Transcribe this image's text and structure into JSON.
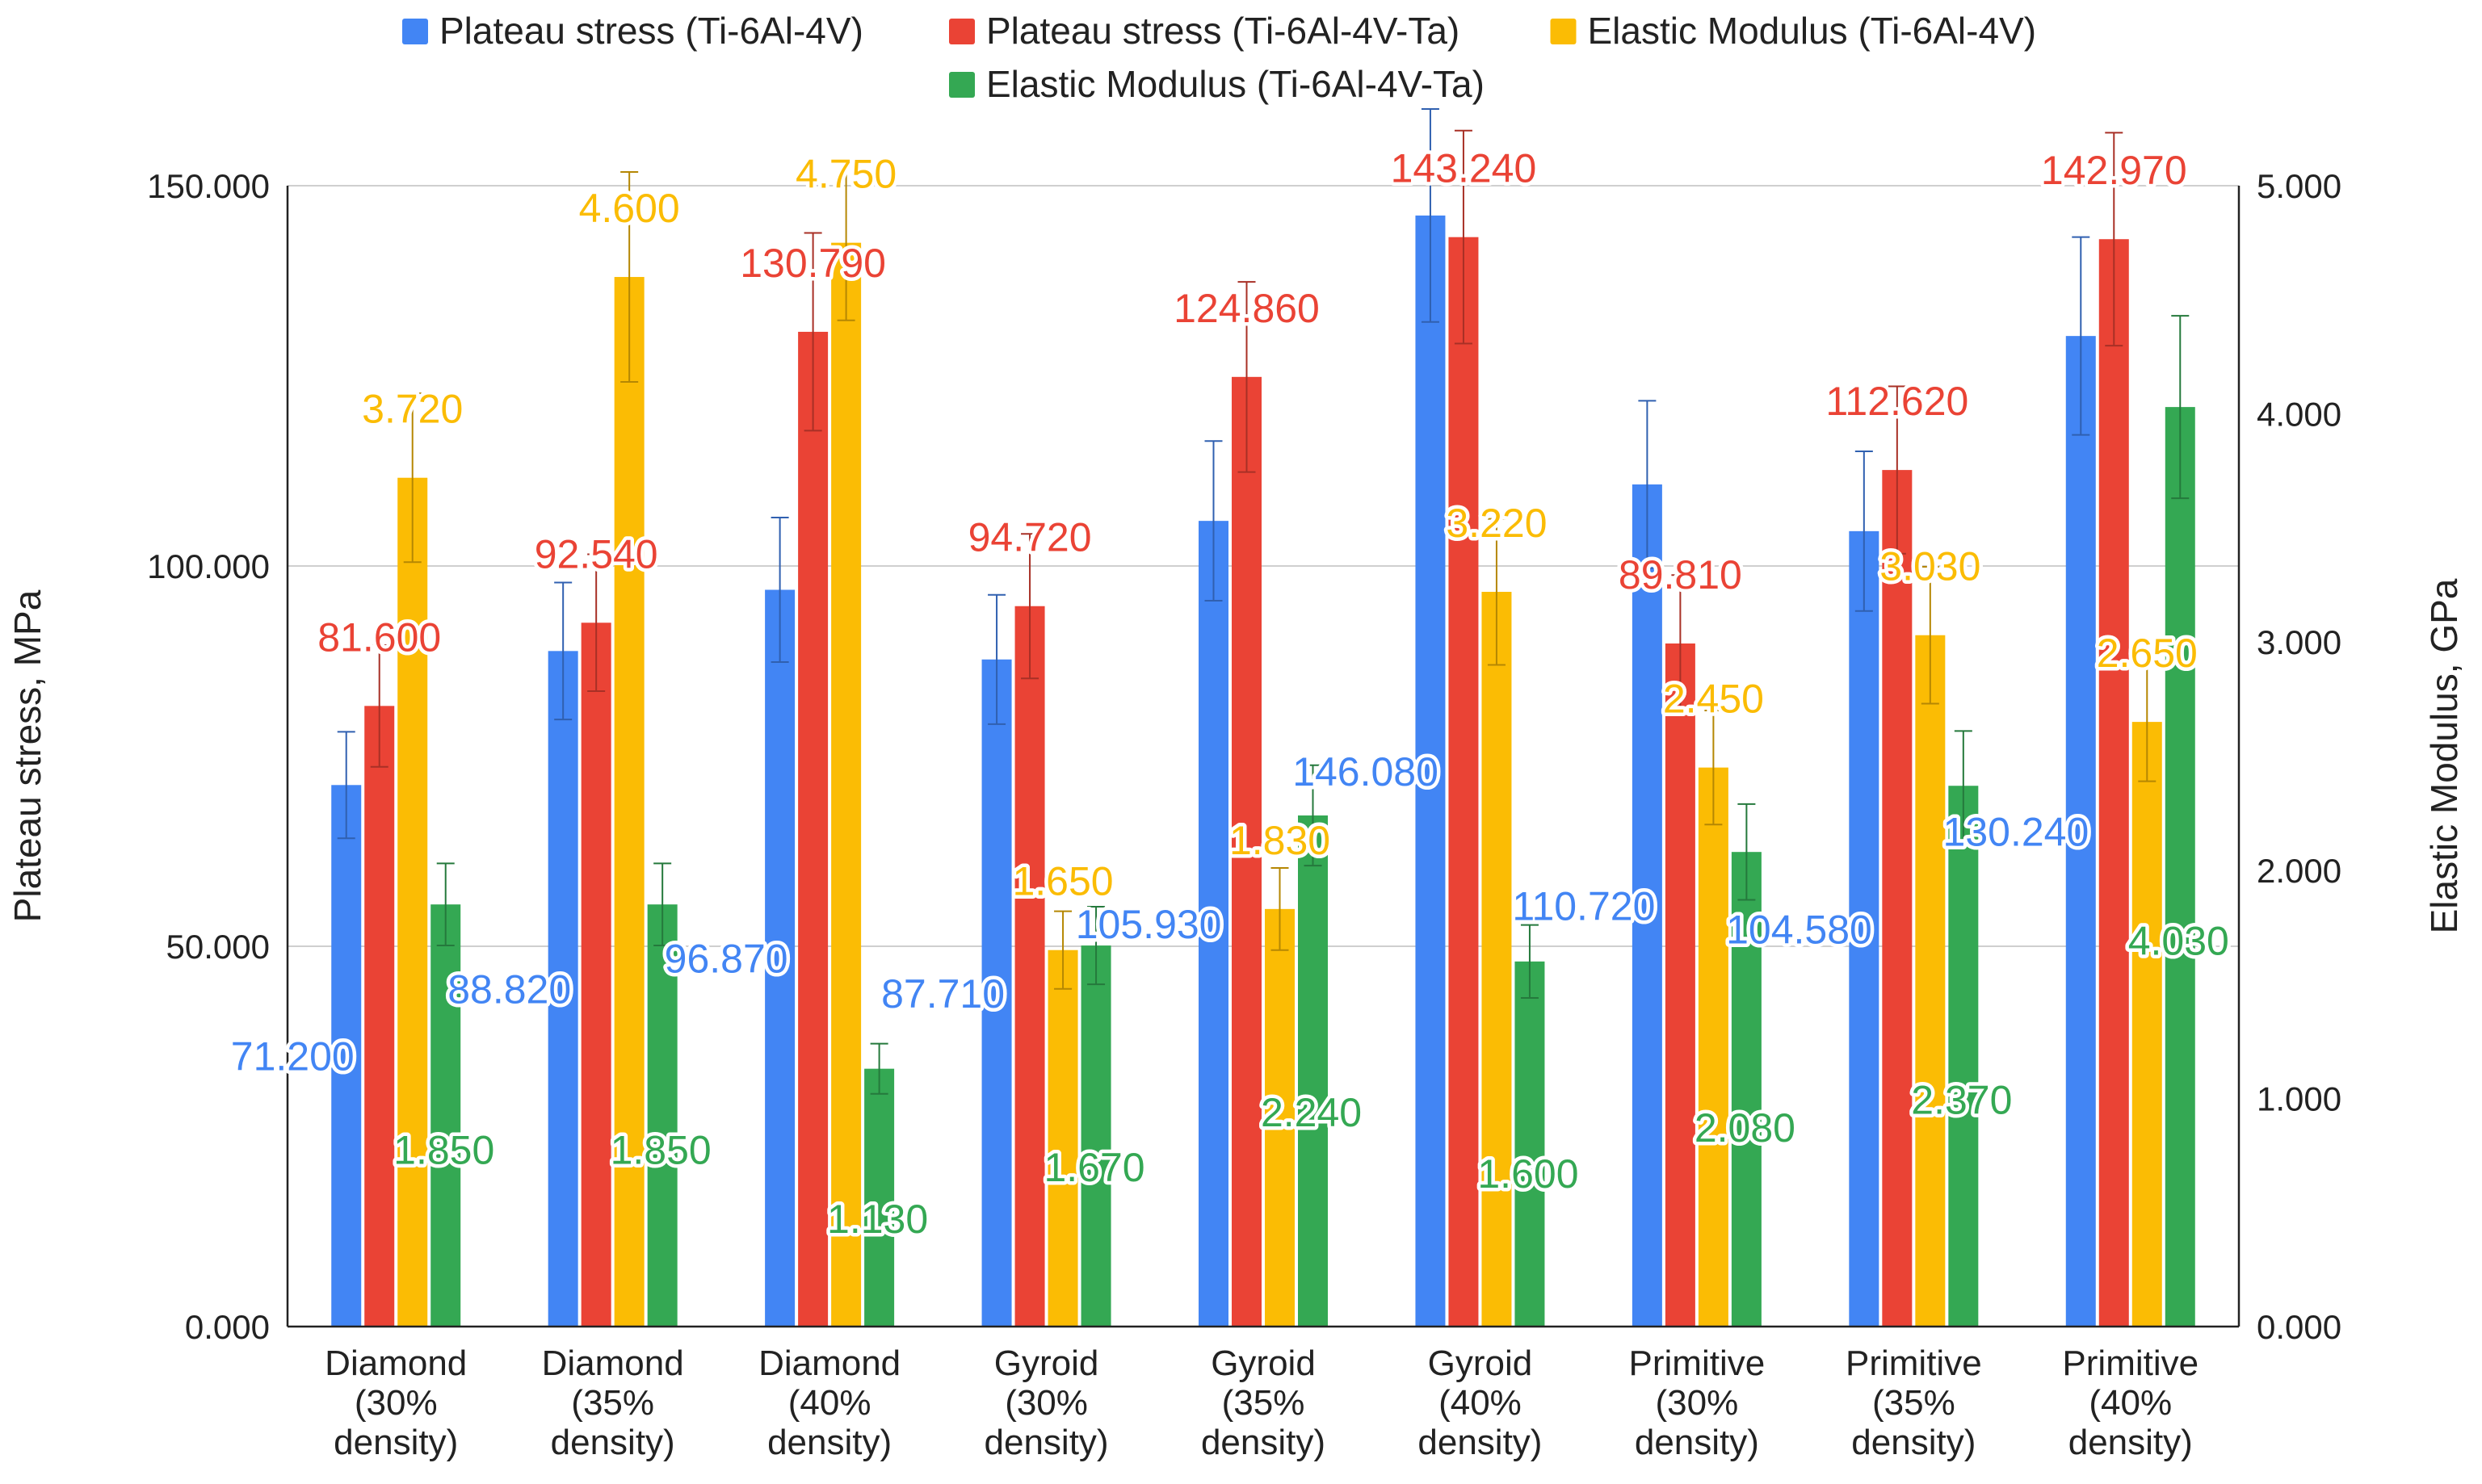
{
  "chart_data": {
    "type": "bar",
    "title": "",
    "xlabel": "",
    "ylabel": "Plateau stress, MPa",
    "y2label": "Elastic Modulus,  GPa",
    "ylim": [
      0,
      150
    ],
    "y2lim": [
      0,
      5
    ],
    "grid": true,
    "legend_position": "top",
    "categories": [
      [
        "Diamond",
        "(30%",
        "density)"
      ],
      [
        "Diamond",
        "(35%",
        "density)"
      ],
      [
        "Diamond",
        "(40%",
        "density)"
      ],
      [
        "Gyroid",
        "(30%",
        "density)"
      ],
      [
        "Gyroid",
        "(35%",
        "density)"
      ],
      [
        "Gyroid",
        "(40%",
        "density)"
      ],
      [
        "Primitive",
        "(30%",
        "density)"
      ],
      [
        "Primitive",
        "(35%",
        "density)"
      ],
      [
        "Primitive",
        "(40%",
        "density)"
      ]
    ],
    "y_ticks": [
      "0.000",
      "50.000",
      "100.000",
      "150.000"
    ],
    "y2_ticks": [
      "0.000",
      "1.000",
      "2.000",
      "3.000",
      "4.000",
      "5.000"
    ],
    "series": [
      {
        "name": "Plateau stress (Ti-6Al-4V)",
        "axis": "left",
        "color": "#4285F4",
        "values": [
          71.2,
          88.82,
          96.87,
          87.71,
          105.93,
          146.08,
          110.72,
          104.58,
          130.24
        ],
        "labels": [
          "71.200",
          "88.820",
          "96.870",
          "87.710",
          "105.930",
          "146.080",
          "110.720",
          "104.580",
          "130.240"
        ],
        "errors": [
          7,
          9,
          9.5,
          8.5,
          10.5,
          14,
          11,
          10.5,
          13
        ]
      },
      {
        "name": "Plateau stress (Ti-6Al-4V-Ta)",
        "axis": "left",
        "color": "#EA4335",
        "values": [
          81.6,
          92.54,
          130.79,
          94.72,
          124.86,
          143.24,
          89.81,
          112.62,
          142.97
        ],
        "labels": [
          "81.600",
          "92.540",
          "130.790",
          "94.720",
          "124.860",
          "143.240",
          "89.810",
          "112.620",
          "142.970"
        ],
        "errors": [
          8,
          9,
          13,
          9.5,
          12.5,
          14,
          9,
          11,
          14
        ]
      },
      {
        "name": "Elastic Modulus (Ti-6Al-4V)",
        "axis": "right",
        "color": "#FBBC04",
        "values": [
          3.72,
          4.6,
          4.75,
          1.65,
          1.83,
          3.22,
          2.45,
          3.03,
          2.65
        ],
        "labels": [
          "3.720",
          "4.600",
          "4.750",
          "1.650",
          "1.830",
          "3.220",
          "2.450",
          "3.030",
          "2.650"
        ],
        "errors": [
          0.37,
          0.46,
          0.34,
          0.17,
          0.18,
          0.32,
          0.25,
          0.3,
          0.26
        ]
      },
      {
        "name": "Elastic Modulus (Ti-6Al-4V-Ta)",
        "axis": "right",
        "color": "#34A853",
        "values": [
          1.85,
          1.85,
          1.13,
          1.67,
          2.24,
          1.6,
          2.08,
          2.37,
          4.03
        ],
        "labels": [
          "1.850",
          "1.850",
          "1.130",
          "1.670",
          "2.240",
          "1.600",
          "2.080",
          "2.370",
          "4.030"
        ],
        "errors": [
          0.18,
          0.18,
          0.11,
          0.17,
          0.22,
          0.16,
          0.21,
          0.24,
          0.4
        ]
      }
    ]
  }
}
